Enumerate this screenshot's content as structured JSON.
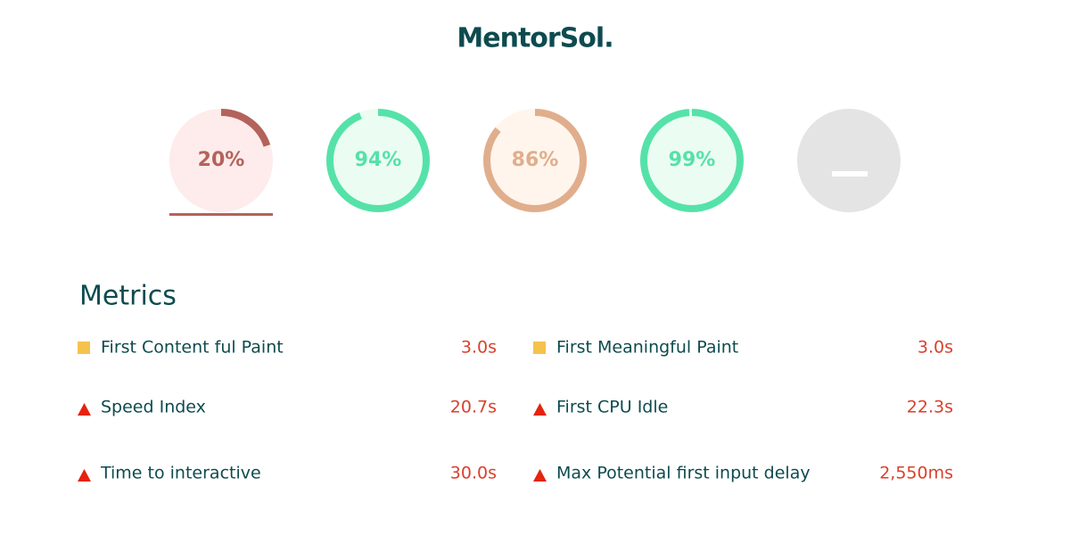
{
  "logo": "MentorSol.",
  "gauges": [
    {
      "value": 20,
      "label": "20%",
      "color": "#b4625c",
      "fill": "#fdeceb",
      "selected": true
    },
    {
      "value": 94,
      "label": "94%",
      "color": "#55e2a8",
      "fill": "#ebfcf3",
      "selected": false
    },
    {
      "value": 86,
      "label": "86%",
      "color": "#e0ae8c",
      "fill": "#fff5ec",
      "selected": false
    },
    {
      "value": 99,
      "label": "99%",
      "color": "#55e2a8",
      "fill": "#ebfcf3",
      "selected": false
    }
  ],
  "metrics": {
    "title": "Metrics",
    "items": [
      {
        "icon": "square",
        "label": "First Content ful Paint",
        "value": "3.0s"
      },
      {
        "icon": "square",
        "label": "First Meaningful Paint",
        "value": "3.0s"
      },
      {
        "icon": "triangle",
        "label": "Speed Index",
        "value": "20.7s"
      },
      {
        "icon": "triangle",
        "label": "First CPU Idle",
        "value": "22.3s"
      },
      {
        "icon": "triangle",
        "label": "Time to interactive",
        "value": "30.0s"
      },
      {
        "icon": "triangle",
        "label": "Max Potential first input delay",
        "value": "2,550ms"
      }
    ]
  }
}
